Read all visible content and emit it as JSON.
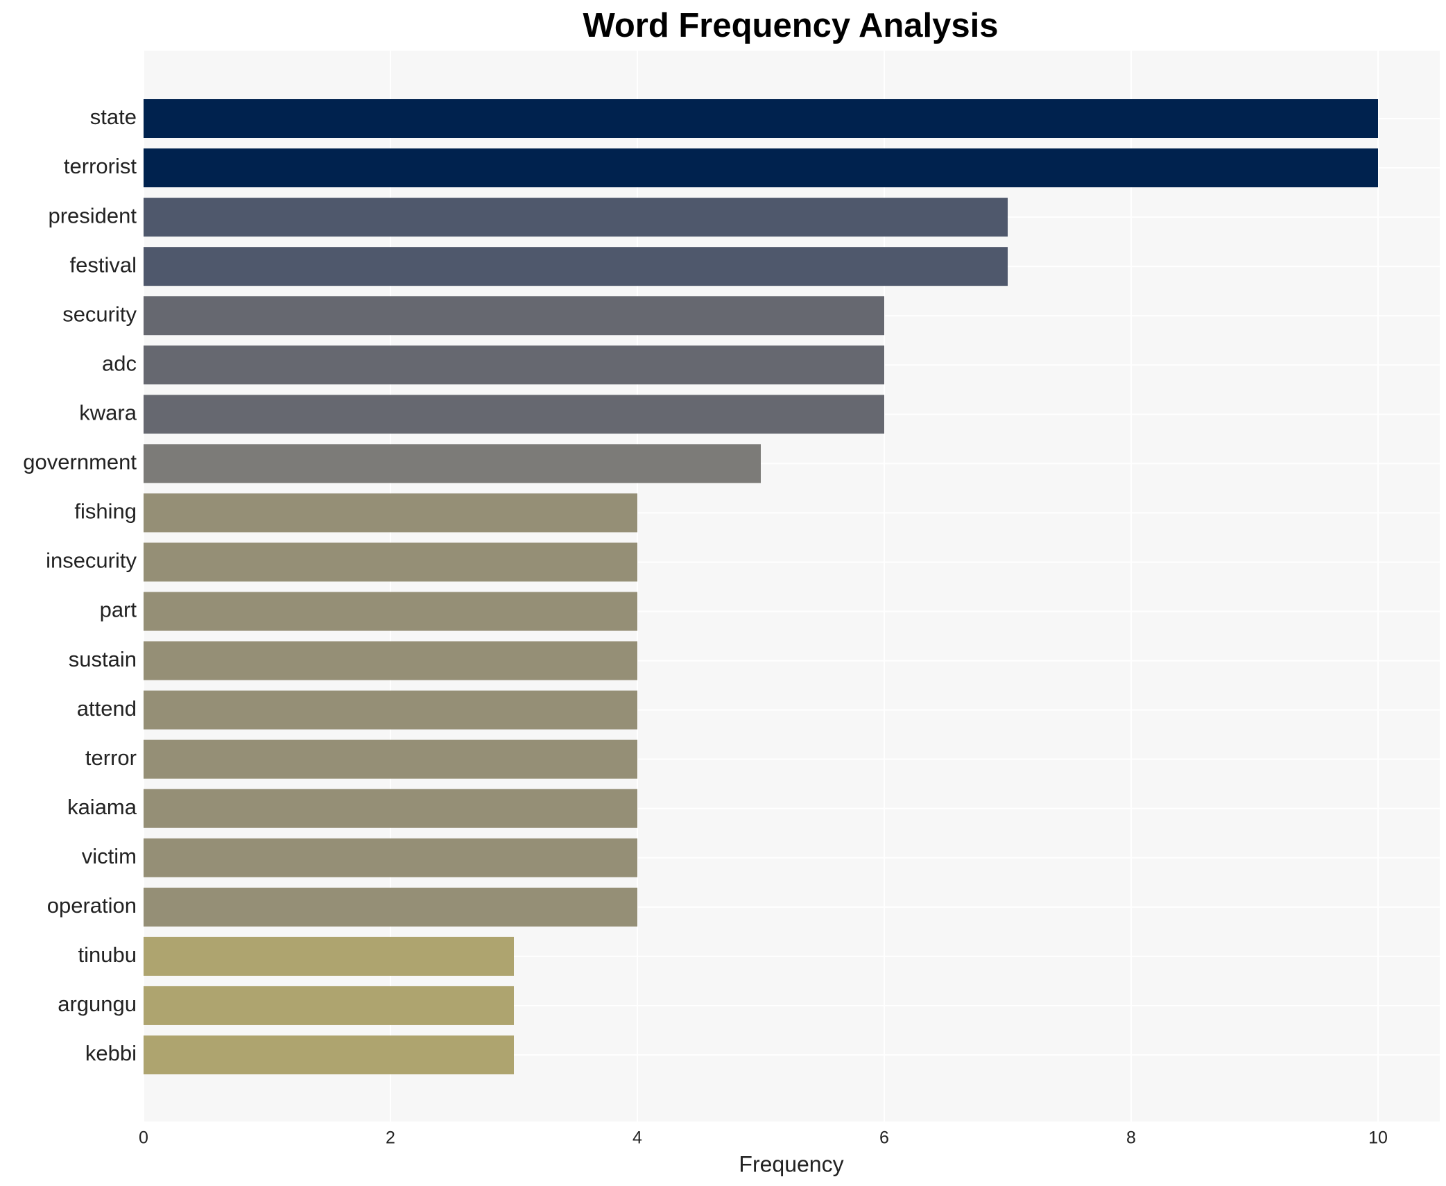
{
  "chart_data": {
    "type": "bar",
    "orientation": "horizontal",
    "title": "Word Frequency Analysis",
    "x_label": "Frequency",
    "categories": [
      "state",
      "terrorist",
      "president",
      "festival",
      "security",
      "adc",
      "kwara",
      "government",
      "fishing",
      "insecurity",
      "part",
      "sustain",
      "attend",
      "terror",
      "kaiama",
      "victim",
      "operation",
      "tinubu",
      "argungu",
      "kebbi"
    ],
    "values": [
      10,
      10,
      7,
      7,
      6,
      6,
      6,
      5,
      4,
      4,
      4,
      4,
      4,
      4,
      4,
      4,
      4,
      3,
      3,
      3
    ],
    "colors": [
      "#00224e",
      "#00224e",
      "#4f586c",
      "#4f586c",
      "#666870",
      "#666870",
      "#666870",
      "#7c7b78",
      "#958f76",
      "#958f76",
      "#958f76",
      "#958f76",
      "#958f76",
      "#958f76",
      "#958f76",
      "#958f76",
      "#958f76",
      "#aea46f",
      "#aea46f",
      "#aea46f"
    ],
    "xlim": [
      0,
      10.5
    ],
    "xticks": [
      0,
      2,
      4,
      6,
      8,
      10
    ],
    "grid": true
  }
}
